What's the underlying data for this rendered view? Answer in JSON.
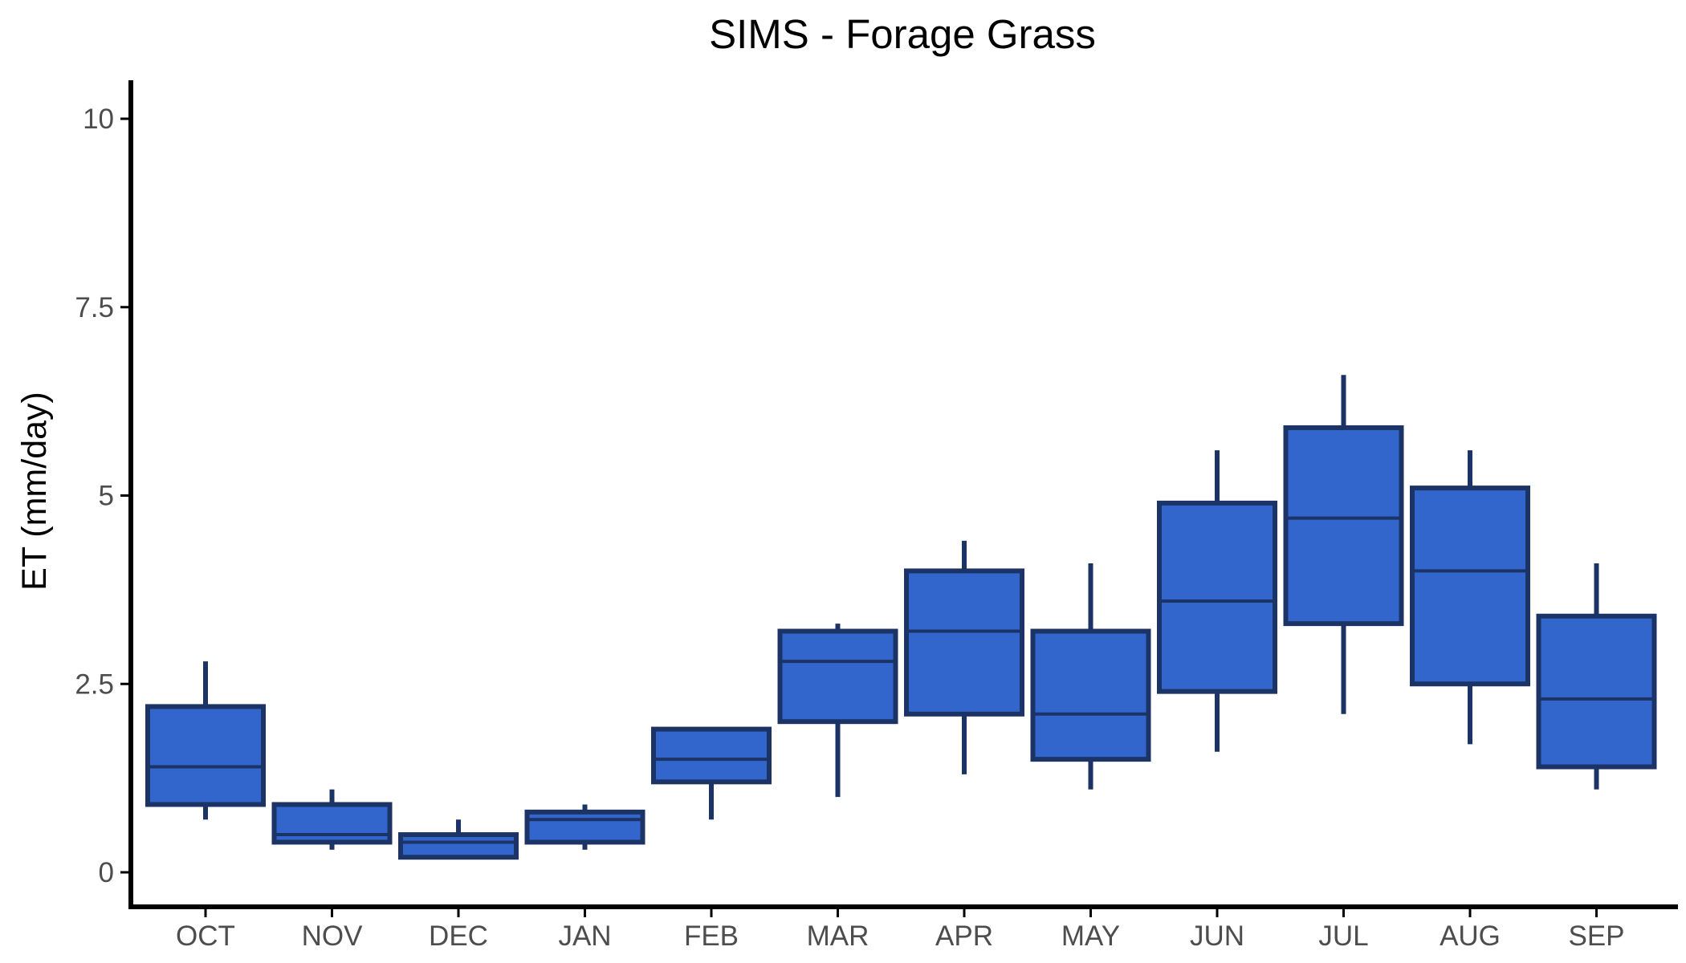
{
  "chart_data": {
    "type": "box",
    "title": "SIMS - Forage Grass",
    "xlabel": "",
    "ylabel": "ET (mm/day)",
    "ylim": [
      -0.5,
      10.5
    ],
    "yticks": [
      0,
      2.5,
      5,
      7.5,
      10
    ],
    "ytick_labels": [
      "0",
      "2.5",
      "5",
      "7.5",
      "10"
    ],
    "grid": false,
    "legend": "none",
    "categories": [
      "OCT",
      "NOV",
      "DEC",
      "JAN",
      "FEB",
      "MAR",
      "APR",
      "MAY",
      "JUN",
      "JUL",
      "AUG",
      "SEP"
    ],
    "boxes": [
      {
        "category": "OCT",
        "min": 0.7,
        "q1": 0.9,
        "median": 1.4,
        "q3": 2.2,
        "max": 2.8
      },
      {
        "category": "NOV",
        "min": 0.3,
        "q1": 0.4,
        "median": 0.5,
        "q3": 0.9,
        "max": 1.1
      },
      {
        "category": "DEC",
        "min": 0.2,
        "q1": 0.2,
        "median": 0.4,
        "q3": 0.5,
        "max": 0.7
      },
      {
        "category": "JAN",
        "min": 0.3,
        "q1": 0.4,
        "median": 0.7,
        "q3": 0.8,
        "max": 0.9
      },
      {
        "category": "FEB",
        "min": 0.7,
        "q1": 1.2,
        "median": 1.5,
        "q3": 1.9,
        "max": 1.9
      },
      {
        "category": "MAR",
        "min": 1.0,
        "q1": 2.0,
        "median": 2.8,
        "q3": 3.2,
        "max": 3.3
      },
      {
        "category": "APR",
        "min": 1.3,
        "q1": 2.1,
        "median": 3.2,
        "q3": 4.0,
        "max": 4.4
      },
      {
        "category": "MAY",
        "min": 1.1,
        "q1": 1.5,
        "median": 2.1,
        "q3": 3.2,
        "max": 4.1
      },
      {
        "category": "JUN",
        "min": 1.6,
        "q1": 2.4,
        "median": 3.6,
        "q3": 4.9,
        "max": 5.6
      },
      {
        "category": "JUL",
        "min": 2.1,
        "q1": 3.3,
        "median": 4.7,
        "q3": 5.9,
        "max": 6.6
      },
      {
        "category": "AUG",
        "min": 1.7,
        "q1": 2.5,
        "median": 4.0,
        "q3": 5.1,
        "max": 5.6
      },
      {
        "category": "SEP",
        "min": 1.1,
        "q1": 1.4,
        "median": 2.3,
        "q3": 3.4,
        "max": 4.1
      }
    ],
    "colors": {
      "box_fill": "#3266cc",
      "box_stroke": "#1c3366",
      "axis": "#000000",
      "tick_label": "#4d4d4d"
    }
  }
}
